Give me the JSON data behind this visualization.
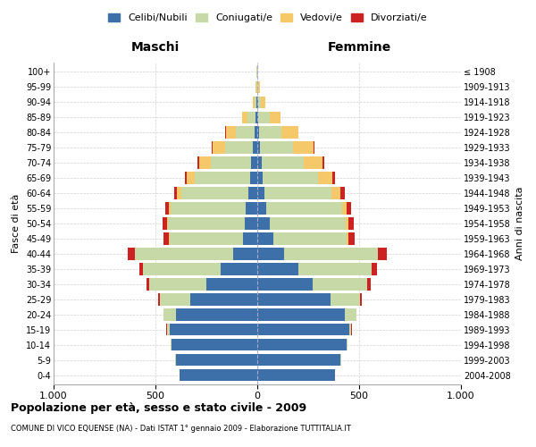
{
  "age_groups": [
    "0-4",
    "5-9",
    "10-14",
    "15-19",
    "20-24",
    "25-29",
    "30-34",
    "35-39",
    "40-44",
    "45-49",
    "50-54",
    "55-59",
    "60-64",
    "65-69",
    "70-74",
    "75-79",
    "80-84",
    "85-89",
    "90-94",
    "95-99",
    "100+"
  ],
  "birth_years": [
    "2004-2008",
    "1999-2003",
    "1994-1998",
    "1989-1993",
    "1984-1988",
    "1979-1983",
    "1974-1978",
    "1969-1973",
    "1964-1968",
    "1959-1963",
    "1954-1958",
    "1949-1953",
    "1944-1948",
    "1939-1943",
    "1934-1938",
    "1929-1933",
    "1924-1928",
    "1919-1923",
    "1914-1918",
    "1909-1913",
    "≤ 1908"
  ],
  "males": {
    "celibe": [
      380,
      400,
      420,
      430,
      400,
      330,
      250,
      180,
      120,
      70,
      60,
      55,
      45,
      35,
      30,
      20,
      15,
      8,
      4,
      2,
      2
    ],
    "coniugato": [
      1,
      2,
      5,
      15,
      60,
      150,
      280,
      380,
      480,
      360,
      380,
      370,
      330,
      270,
      200,
      140,
      90,
      40,
      8,
      3,
      2
    ],
    "vedovo": [
      0,
      0,
      0,
      0,
      0,
      0,
      1,
      1,
      2,
      3,
      5,
      10,
      20,
      40,
      55,
      60,
      50,
      25,
      8,
      3,
      1
    ],
    "divorziato": [
      0,
      0,
      0,
      1,
      2,
      5,
      12,
      20,
      35,
      28,
      22,
      18,
      12,
      10,
      8,
      4,
      2,
      0,
      0,
      0,
      0
    ]
  },
  "females": {
    "nubile": [
      380,
      410,
      440,
      450,
      430,
      360,
      270,
      200,
      130,
      80,
      60,
      45,
      35,
      25,
      20,
      15,
      10,
      5,
      4,
      2,
      2
    ],
    "coniugata": [
      1,
      1,
      4,
      12,
      55,
      145,
      270,
      360,
      460,
      360,
      375,
      370,
      330,
      275,
      210,
      160,
      110,
      55,
      15,
      4,
      2
    ],
    "vedova": [
      0,
      0,
      0,
      0,
      0,
      0,
      1,
      2,
      4,
      6,
      12,
      25,
      45,
      70,
      90,
      100,
      80,
      55,
      20,
      5,
      2
    ],
    "divorziata": [
      0,
      0,
      0,
      1,
      2,
      6,
      15,
      25,
      40,
      32,
      28,
      22,
      18,
      12,
      10,
      5,
      3,
      1,
      0,
      0,
      0
    ]
  },
  "colors": {
    "celibe": "#3d6fa8",
    "coniugato": "#c8d9a8",
    "vedovo": "#f5c96a",
    "divorziato": "#cc2222"
  },
  "xlim": 1000,
  "title": "Popolazione per età, sesso e stato civile - 2009",
  "subtitle": "COMUNE DI VICO EQUENSE (NA) - Dati ISTAT 1° gennaio 2009 - Elaborazione TUTTITALIA.IT",
  "ylabel_left": "Fasce di età",
  "ylabel_right": "Anni di nascita",
  "xlabel_left": "Maschi",
  "xlabel_right": "Femmine",
  "legend_labels": [
    "Celibi/Nubili",
    "Coniugati/e",
    "Vedovi/e",
    "Divorziati/e"
  ],
  "background_color": "#ffffff",
  "grid_color": "#cccccc"
}
